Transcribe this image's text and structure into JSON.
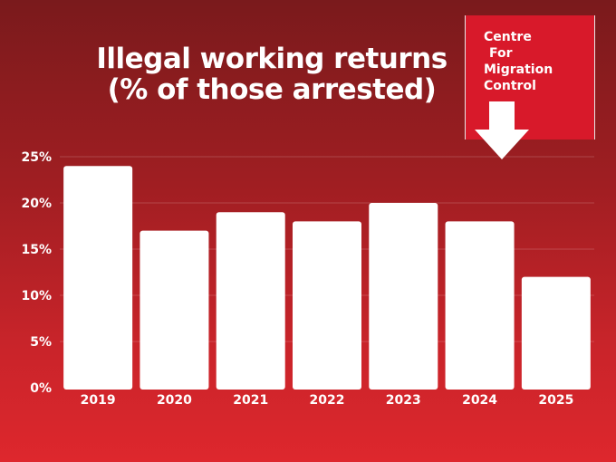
{
  "title_lines": [
    "Illegal working returns",
    "(% of those arrested)"
  ],
  "logo": {
    "lines": [
      "Centre",
      "For",
      "Migration",
      "Control"
    ],
    "icon": "down-arrow-icon"
  },
  "colors": {
    "bar": "#ffffff",
    "text": "#ffffff",
    "logo_bg": "#d8192a",
    "background_top": "#7a1a1c",
    "background_bottom": "#de272d"
  },
  "chart_data": {
    "type": "bar",
    "title": "Illegal working returns (% of those arrested)",
    "categories": [
      "2019",
      "2020",
      "2021",
      "2022",
      "2023",
      "2024",
      "2025"
    ],
    "values": [
      24,
      17,
      19,
      18,
      20,
      18,
      12
    ],
    "ylim": [
      0,
      25
    ],
    "yticks": [
      0,
      5,
      10,
      15,
      20,
      25
    ],
    "ytick_labels": [
      "0%",
      "5%",
      "10%",
      "15%",
      "20%",
      "25%"
    ],
    "xlabel": "",
    "ylabel": "",
    "grid": true
  }
}
